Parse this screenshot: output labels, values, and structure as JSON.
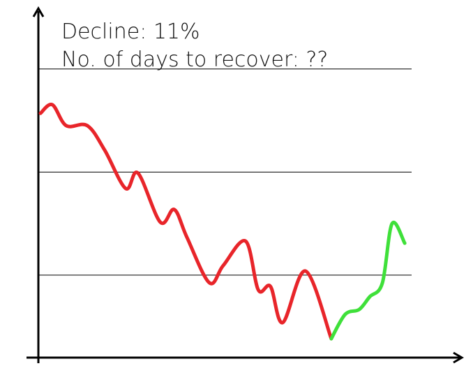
{
  "chart_data": {
    "type": "line",
    "annotations": [
      "Decline: 11%",
      "No. of days to recover: ??"
    ],
    "xlim": [
      0,
      100
    ],
    "ylim": [
      0,
      100
    ],
    "yticks": [
      24,
      54,
      84
    ],
    "grid": true,
    "series": [
      {
        "color": "#e8252a",
        "x": [
          0.5,
          3.3,
          6.6,
          11.6,
          15.7,
          20.7,
          23.6,
          28.9,
          32.2,
          35.2,
          40.5,
          43.8,
          49.1,
          52.1,
          55.0,
          57.9,
          63.3,
          69.4
        ],
        "values": [
          71.1,
          73.6,
          67.5,
          67.5,
          60.4,
          49.2,
          53.7,
          39.4,
          43.1,
          35.0,
          21.8,
          26.8,
          33.9,
          19.7,
          20.7,
          10.2,
          25.2,
          5.5
        ]
      },
      {
        "color": "#3fe03a",
        "x": [
          69.4,
          72.7,
          76.0,
          78.5,
          81.5,
          83.8,
          86.8
        ],
        "values": [
          5.5,
          12.6,
          14.0,
          17.7,
          21.7,
          39.0,
          33.3
        ]
      }
    ]
  }
}
